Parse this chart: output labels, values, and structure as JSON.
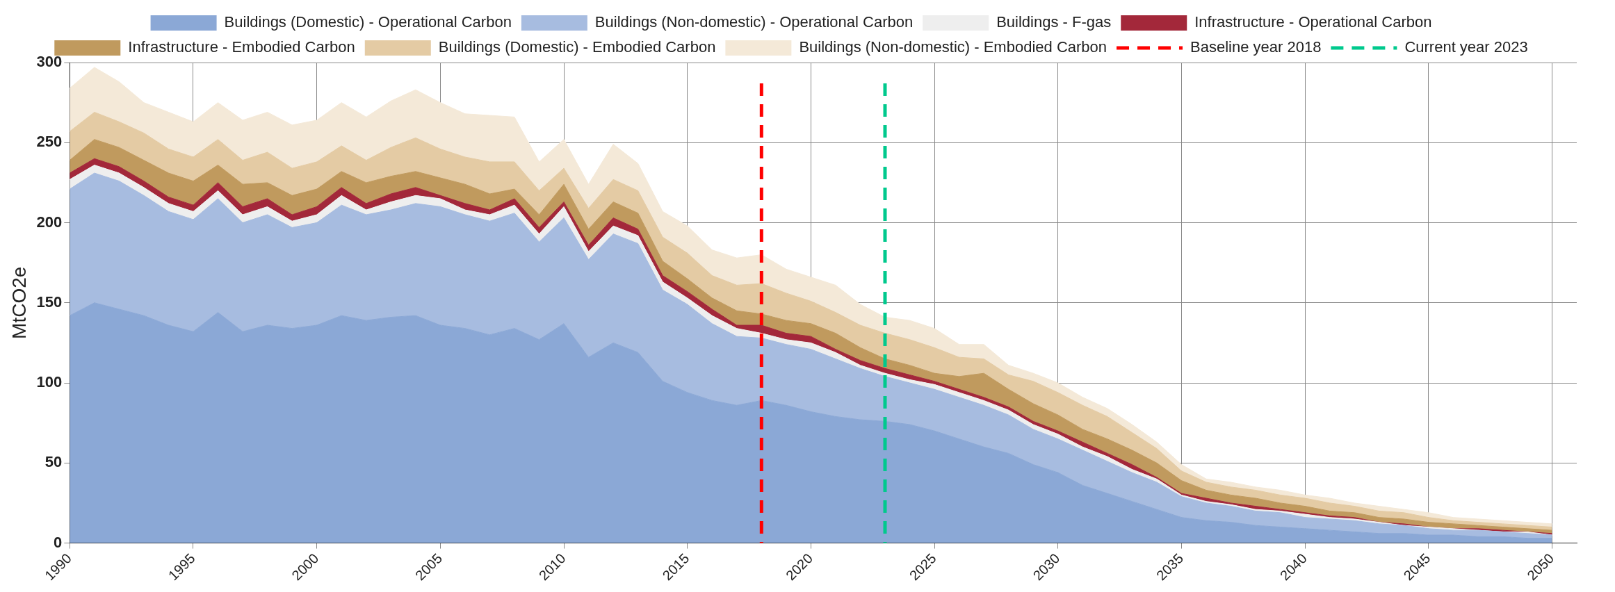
{
  "chart_data": {
    "type": "area",
    "stacked": true,
    "ylabel": "MtCO2e",
    "legend": "top",
    "grid": true,
    "x": [
      1990,
      1991,
      1992,
      1993,
      1994,
      1995,
      1996,
      1997,
      1998,
      1999,
      2000,
      2001,
      2002,
      2003,
      2004,
      2005,
      2006,
      2007,
      2008,
      2009,
      2010,
      2011,
      2012,
      2013,
      2014,
      2015,
      2016,
      2017,
      2018,
      2019,
      2020,
      2021,
      2022,
      2023,
      2024,
      2025,
      2026,
      2027,
      2028,
      2029,
      2030,
      2031,
      2032,
      2033,
      2034,
      2035,
      2036,
      2037,
      2038,
      2039,
      2040,
      2041,
      2042,
      2043,
      2044,
      2045,
      2046,
      2047,
      2048,
      2049,
      2050
    ],
    "xlim": [
      1990,
      2051
    ],
    "xticks": [
      1990,
      1995,
      2000,
      2005,
      2010,
      2015,
      2020,
      2025,
      2030,
      2035,
      2040,
      2045,
      2050
    ],
    "ylim": [
      0,
      300
    ],
    "yticks": [
      0,
      50,
      100,
      150,
      200,
      250,
      300
    ],
    "series": [
      {
        "name": "Buildings (Domestic) - Operational Carbon",
        "color": "#8ba8d6",
        "values": [
          142,
          150,
          146,
          142,
          136,
          132,
          144,
          132,
          136,
          134,
          136,
          142,
          139,
          141,
          142,
          136,
          134,
          130,
          134,
          127,
          137,
          116,
          125,
          119,
          101,
          94,
          89,
          86,
          89,
          86,
          82,
          79,
          77,
          76,
          74,
          70,
          65,
          60,
          56,
          49,
          44,
          36,
          31,
          26,
          21,
          16,
          14,
          13,
          11,
          10,
          9,
          8,
          7,
          6,
          6,
          5,
          5,
          4,
          4,
          3,
          3
        ]
      },
      {
        "name": "Buildings (Non-domestic) - Operational Carbon",
        "color": "#a7bce0",
        "values": [
          79,
          81,
          80,
          75,
          71,
          70,
          71,
          68,
          69,
          63,
          64,
          69,
          66,
          67,
          70,
          74,
          71,
          71,
          72,
          61,
          66,
          61,
          68,
          68,
          57,
          55,
          48,
          43,
          39,
          38,
          39,
          36,
          32,
          28,
          26,
          26,
          26,
          26,
          24,
          22,
          21,
          22,
          20,
          18,
          17,
          13,
          11,
          10,
          9,
          9,
          7,
          7,
          7,
          6,
          5,
          4,
          3,
          4,
          3,
          3,
          2
        ]
      },
      {
        "name": "Buildings - F-gas",
        "color": "#eeeeee",
        "values": [
          6,
          5,
          5,
          5,
          5,
          5,
          5,
          5,
          5,
          4,
          5,
          6,
          3,
          5,
          5,
          5,
          3,
          4,
          5,
          5,
          7,
          5,
          5,
          5,
          5,
          4,
          5,
          5,
          3,
          3,
          4,
          4,
          2,
          2,
          2,
          3,
          3,
          3,
          3,
          3,
          3,
          2,
          3,
          2,
          2,
          1,
          1,
          1,
          1,
          1,
          2,
          1,
          1,
          1,
          0,
          1,
          1,
          0,
          0,
          1,
          0
        ]
      },
      {
        "name": "Infrastructure - Operational Carbon",
        "color": "#a3283a",
        "values": [
          4,
          4,
          4,
          4,
          4,
          4,
          5,
          5,
          5,
          4,
          5,
          5,
          4,
          5,
          5,
          2,
          4,
          3,
          4,
          4,
          3,
          4,
          5,
          4,
          4,
          4,
          4,
          2,
          5,
          4,
          4,
          2,
          3,
          3,
          3,
          2,
          2,
          2,
          2,
          2,
          2,
          3,
          2,
          3,
          1,
          1,
          2,
          1,
          2,
          1,
          1,
          1,
          1,
          0,
          1,
          0,
          0,
          1,
          1,
          0,
          1
        ]
      },
      {
        "name": "Infrastructure - Embodied Carbon",
        "color": "#c09a5e",
        "values": [
          8,
          12,
          12,
          13,
          15,
          15,
          11,
          14,
          10,
          12,
          11,
          10,
          13,
          11,
          10,
          11,
          12,
          10,
          6,
          8,
          11,
          10,
          10,
          10,
          9,
          8,
          7,
          9,
          7,
          8,
          8,
          10,
          8,
          6,
          6,
          5,
          8,
          15,
          11,
          11,
          10,
          8,
          9,
          9,
          9,
          8,
          5,
          5,
          5,
          4,
          4,
          3,
          3,
          3,
          3,
          3,
          3,
          2,
          2,
          2,
          2
        ]
      },
      {
        "name": "Buildings (Domestic) - Embodied Carbon",
        "color": "#e4cba4",
        "values": [
          18,
          17,
          16,
          17,
          15,
          15,
          16,
          15,
          19,
          17,
          17,
          16,
          14,
          18,
          21,
          18,
          17,
          20,
          17,
          15,
          10,
          13,
          14,
          14,
          15,
          16,
          14,
          16,
          19,
          17,
          14,
          13,
          14,
          16,
          16,
          16,
          12,
          9,
          9,
          14,
          14,
          15,
          14,
          11,
          9,
          6,
          5,
          5,
          5,
          5,
          5,
          5,
          4,
          4,
          4,
          3,
          2,
          2,
          2,
          2,
          2
        ]
      },
      {
        "name": "Buildings (Non-domestic) - Embodied Carbon",
        "color": "#f4e9d8",
        "values": [
          27,
          28,
          25,
          19,
          23,
          22,
          23,
          25,
          25,
          27,
          26,
          27,
          27,
          29,
          30,
          29,
          27,
          29,
          28,
          18,
          18,
          15,
          22,
          17,
          16,
          17,
          16,
          17,
          18,
          15,
          15,
          17,
          13,
          10,
          12,
          12,
          8,
          9,
          6,
          5,
          6,
          5,
          5,
          5,
          4,
          4,
          2,
          3,
          2,
          3,
          2,
          3,
          2,
          3,
          2,
          3,
          2,
          2,
          2,
          2,
          2
        ]
      }
    ],
    "ref_lines": [
      {
        "axis": "x",
        "value": 2018,
        "label": "Baseline year 2018",
        "color": "#ff0000",
        "line_style": "dashed"
      },
      {
        "axis": "x",
        "value": 2023,
        "label": "Current year 2023",
        "color": "#00c98d",
        "line_style": "dashed"
      }
    ]
  }
}
